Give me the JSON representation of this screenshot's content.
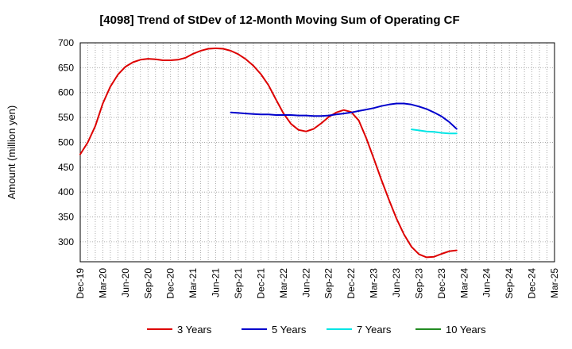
{
  "chart_data": {
    "type": "line",
    "title": "[4098]  Trend of StDev of 12-Month Moving Sum of Operating CF",
    "ylabel": "Amount (million yen)",
    "xlabel": "",
    "ylim": [
      260,
      700
    ],
    "yticks": [
      300,
      350,
      400,
      450,
      500,
      550,
      600,
      650,
      700
    ],
    "x_tick_labels": [
      "Dec-19",
      "Mar-20",
      "Jun-20",
      "Sep-20",
      "Dec-20",
      "Mar-21",
      "Jun-21",
      "Sep-21",
      "Dec-21",
      "Mar-22",
      "Jun-22",
      "Sep-22",
      "Dec-22",
      "Mar-23",
      "Jun-23",
      "Sep-23",
      "Dec-23",
      "Mar-24",
      "Jun-24",
      "Sep-24",
      "Dec-24",
      "Mar-25"
    ],
    "grid": true,
    "legend_position": "bottom",
    "series": [
      {
        "name": "3 Years",
        "color": "#dd0000",
        "points": [
          [
            "Dec-19",
            476
          ],
          [
            "Jan-20",
            500
          ],
          [
            "Feb-20",
            533
          ],
          [
            "Mar-20",
            578
          ],
          [
            "Apr-20",
            612
          ],
          [
            "May-20",
            636
          ],
          [
            "Jun-20",
            652
          ],
          [
            "Jul-20",
            661
          ],
          [
            "Aug-20",
            666
          ],
          [
            "Sep-20",
            668
          ],
          [
            "Oct-20",
            667
          ],
          [
            "Nov-20",
            665
          ],
          [
            "Dec-20",
            665
          ],
          [
            "Jan-21",
            666
          ],
          [
            "Feb-21",
            670
          ],
          [
            "Mar-21",
            678
          ],
          [
            "Apr-21",
            684
          ],
          [
            "May-21",
            688
          ],
          [
            "Jun-21",
            689
          ],
          [
            "Jul-21",
            688
          ],
          [
            "Aug-21",
            684
          ],
          [
            "Sep-21",
            677
          ],
          [
            "Oct-21",
            667
          ],
          [
            "Nov-21",
            654
          ],
          [
            "Dec-21",
            637
          ],
          [
            "Jan-22",
            615
          ],
          [
            "Feb-22",
            586
          ],
          [
            "Mar-22",
            558
          ],
          [
            "Apr-22",
            537
          ],
          [
            "May-22",
            525
          ],
          [
            "Jun-22",
            522
          ],
          [
            "Jul-22",
            527
          ],
          [
            "Aug-22",
            538
          ],
          [
            "Sep-22",
            551
          ],
          [
            "Oct-22",
            560
          ],
          [
            "Nov-22",
            565
          ],
          [
            "Dec-22",
            561
          ],
          [
            "Jan-23",
            544
          ],
          [
            "Feb-23",
            508
          ],
          [
            "Mar-23",
            467
          ],
          [
            "Apr-23",
            425
          ],
          [
            "May-23",
            385
          ],
          [
            "Jun-23",
            347
          ],
          [
            "Jul-23",
            315
          ],
          [
            "Aug-23",
            290
          ],
          [
            "Sep-23",
            275
          ],
          [
            "Oct-23",
            269
          ],
          [
            "Nov-23",
            270
          ],
          [
            "Dec-23",
            276
          ],
          [
            "Jan-24",
            281
          ],
          [
            "Feb-24",
            283
          ]
        ]
      },
      {
        "name": "5 Years",
        "color": "#0000cc",
        "points": [
          [
            "Aug-21",
            560
          ],
          [
            "Sep-21",
            559
          ],
          [
            "Oct-21",
            558
          ],
          [
            "Nov-21",
            557
          ],
          [
            "Dec-21",
            556
          ],
          [
            "Jan-22",
            556
          ],
          [
            "Feb-22",
            555
          ],
          [
            "Mar-22",
            555
          ],
          [
            "Apr-22",
            555
          ],
          [
            "May-22",
            554
          ],
          [
            "Jun-22",
            554
          ],
          [
            "Jul-22",
            553
          ],
          [
            "Aug-22",
            553
          ],
          [
            "Sep-22",
            554
          ],
          [
            "Oct-22",
            556
          ],
          [
            "Nov-22",
            558
          ],
          [
            "Dec-22",
            560
          ],
          [
            "Jan-23",
            563
          ],
          [
            "Feb-23",
            566
          ],
          [
            "Mar-23",
            569
          ],
          [
            "Apr-23",
            573
          ],
          [
            "May-23",
            576
          ],
          [
            "Jun-23",
            578
          ],
          [
            "Jul-23",
            578
          ],
          [
            "Aug-23",
            576
          ],
          [
            "Sep-23",
            572
          ],
          [
            "Oct-23",
            567
          ],
          [
            "Nov-23",
            560
          ],
          [
            "Dec-23",
            552
          ],
          [
            "Jan-24",
            541
          ],
          [
            "Feb-24",
            527
          ]
        ]
      },
      {
        "name": "7 Years",
        "color": "#00e5e5",
        "points": [
          [
            "Aug-23",
            526
          ],
          [
            "Sep-23",
            524
          ],
          [
            "Oct-23",
            522
          ],
          [
            "Nov-23",
            521
          ],
          [
            "Dec-23",
            519
          ],
          [
            "Jan-24",
            518
          ],
          [
            "Feb-24",
            518
          ]
        ]
      },
      {
        "name": "10 Years",
        "color": "#228b22",
        "points": []
      }
    ]
  }
}
